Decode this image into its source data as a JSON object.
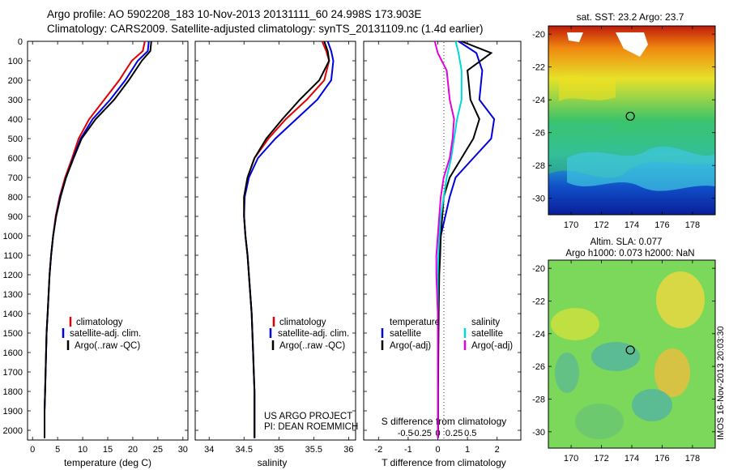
{
  "header": {
    "line1": "Argo profile: AO 5902208_183 10-Nov-2013 20131111_60 24.998S 173.903E",
    "line2": "Climatology: CARS2009. Satellite-adjusted climatology: synTS_20131109.nc (1.4d earlier)"
  },
  "colors": {
    "climatology": "#e00000",
    "satellite": "#0000e0",
    "argo": "#000000",
    "salinity_satellite": "#00d8d8",
    "salinity_argo": "#e000e0"
  },
  "depth_axis": {
    "ticks": [
      "0",
      "100",
      "200",
      "300",
      "400",
      "500",
      "600",
      "700",
      "800",
      "900",
      "1000",
      "1100",
      "1200",
      "1300",
      "1400",
      "1500",
      "1600",
      "1700",
      "1800",
      "1900",
      "2000"
    ]
  },
  "panels": {
    "temperature": {
      "xlabel": "temperature (deg C)",
      "xticks": [
        "0",
        "5",
        "10",
        "15",
        "20",
        "25",
        "30"
      ],
      "legend": [
        "climatology",
        "satellite-adj. clim.",
        "Argo(..raw -QC)"
      ]
    },
    "salinity": {
      "xlabel": "salinity",
      "xticks": [
        "34",
        "34.5",
        "35",
        "35.5",
        "36"
      ],
      "legend": [
        "climatology",
        "satellite-adj. clim.",
        "Argo(..raw -QC)"
      ],
      "credit": [
        "US ARGO PROJECT",
        "PI: DEAN ROEMMICH"
      ]
    },
    "difference": {
      "xlabel": "T difference from climatology",
      "toplabel": "S difference from climatology",
      "xticks": [
        "-2",
        "-1",
        "0",
        "1",
        "2"
      ],
      "sticks": [
        "-0.5",
        "-0.25",
        "0",
        "0.25",
        "0.5"
      ],
      "legend_temp_title": "temperature",
      "legend_temp": [
        "satellite",
        "Argo(-adj)"
      ],
      "legend_sal_title": "salinity",
      "legend_sal": [
        "satellite",
        "Argo(-adj)"
      ]
    }
  },
  "maps": {
    "sst": {
      "title": "sat. SST: 23.2 Argo: 23.7",
      "yticks": [
        "-20",
        "-22",
        "-24",
        "-26",
        "-28",
        "-30"
      ],
      "xticks": [
        "170",
        "172",
        "174",
        "176",
        "178"
      ]
    },
    "sla": {
      "title1": "Altim. SLA: 0.077",
      "title2": "Argo h1000: 0.073 h2000: NaN",
      "yticks": [
        "-20",
        "-22",
        "-24",
        "-26",
        "-28",
        "-30"
      ],
      "xticks": [
        "170",
        "172",
        "174",
        "176",
        "178"
      ],
      "stamp": "IMOS 16-Nov-2013 20:03:30"
    }
  },
  "chart_data": [
    {
      "type": "line",
      "xlabel": "temperature (deg C)",
      "ylabel": "",
      "xlim": [
        -1,
        31
      ],
      "ylim": [
        2050,
        0
      ],
      "series": [
        {
          "name": "climatology",
          "x": [
            22.4,
            22.0,
            19.8,
            17.3,
            14.3,
            11.3,
            9.2,
            7.9,
            6.5,
            5.4,
            4.6,
            4.1,
            3.7,
            3.4,
            3.2,
            3.0,
            2.8,
            2.7,
            2.6,
            2.5,
            2.4,
            2.4
          ],
          "y": [
            0,
            50,
            100,
            200,
            300,
            400,
            500,
            600,
            700,
            800,
            900,
            1000,
            1100,
            1200,
            1300,
            1400,
            1500,
            1600,
            1700,
            1800,
            1900,
            2040
          ]
        },
        {
          "name": "satellite-adj. clim.",
          "x": [
            23.2,
            23.0,
            21.0,
            18.5,
            15.5,
            12.0,
            9.6,
            8.1,
            6.7,
            5.5,
            4.7,
            4.1,
            3.7,
            3.4,
            3.2,
            3.0,
            2.8,
            2.7,
            2.6,
            2.5,
            2.4,
            2.4
          ],
          "y": [
            0,
            50,
            100,
            200,
            300,
            400,
            500,
            600,
            700,
            800,
            900,
            1000,
            1100,
            1200,
            1300,
            1400,
            1500,
            1600,
            1700,
            1800,
            1900,
            2040
          ]
        },
        {
          "name": "Argo(..raw -QC)",
          "x": [
            23.7,
            23.5,
            21.8,
            19.2,
            16.3,
            12.6,
            9.8,
            8.2,
            6.7,
            5.6,
            4.7,
            4.1,
            3.7,
            3.4,
            3.2,
            3.0,
            2.8,
            2.7,
            2.6,
            2.5,
            2.4,
            2.4
          ],
          "y": [
            0,
            50,
            100,
            200,
            300,
            400,
            500,
            600,
            700,
            800,
            900,
            1000,
            1100,
            1200,
            1300,
            1400,
            1500,
            1600,
            1700,
            1800,
            1900,
            2040
          ]
        }
      ]
    },
    {
      "type": "line",
      "xlabel": "salinity",
      "ylabel": "",
      "xlim": [
        33.8,
        36.1
      ],
      "ylim": [
        2050,
        0
      ],
      "series": [
        {
          "name": "climatology",
          "x": [
            35.62,
            35.68,
            35.72,
            35.65,
            35.4,
            35.1,
            34.85,
            34.65,
            34.55,
            34.5,
            34.5,
            34.52,
            34.55,
            34.57,
            34.59,
            34.61,
            34.62,
            34.63,
            34.64,
            34.65,
            34.65,
            34.65
          ],
          "y": [
            0,
            50,
            100,
            200,
            300,
            400,
            500,
            600,
            700,
            800,
            900,
            1000,
            1100,
            1200,
            1300,
            1400,
            1500,
            1600,
            1700,
            1800,
            1900,
            2040
          ]
        },
        {
          "name": "satellite-adj. clim.",
          "x": [
            35.7,
            35.75,
            35.78,
            35.75,
            35.55,
            35.25,
            34.95,
            34.7,
            34.57,
            34.51,
            34.5,
            34.52,
            34.55,
            34.57,
            34.59,
            34.61,
            34.62,
            34.63,
            34.64,
            34.65,
            34.65,
            34.65
          ],
          "y": [
            0,
            50,
            100,
            200,
            300,
            400,
            500,
            600,
            700,
            800,
            900,
            1000,
            1100,
            1200,
            1300,
            1400,
            1500,
            1600,
            1700,
            1800,
            1900,
            2040
          ]
        },
        {
          "name": "Argo(..raw -QC)",
          "x": [
            35.65,
            35.7,
            35.72,
            35.58,
            35.3,
            35.05,
            34.82,
            34.65,
            34.55,
            34.5,
            34.5,
            34.52,
            34.55,
            34.57,
            34.59,
            34.61,
            34.62,
            34.63,
            34.64,
            34.65,
            34.65,
            34.65
          ],
          "y": [
            0,
            50,
            100,
            200,
            300,
            400,
            500,
            600,
            700,
            800,
            900,
            1000,
            1100,
            1200,
            1300,
            1400,
            1500,
            1600,
            1700,
            1800,
            1900,
            2040
          ]
        }
      ]
    },
    {
      "type": "line",
      "xlabel": "T difference from climatology",
      "title": "S difference from climatology",
      "xlim": [
        -2.5,
        2.8
      ],
      "ylim": [
        2050,
        0
      ],
      "series": [
        {
          "name": "satellite",
          "x": [
            0.7,
            1.3,
            1.5,
            1.4,
            1.9,
            1.8,
            1.2,
            0.6,
            0.4,
            0.25,
            0.1,
            0.05,
            0.02,
            0.01,
            0.0,
            0.0,
            0.0
          ],
          "y": [
            0,
            60,
            150,
            300,
            400,
            500,
            600,
            700,
            800,
            900,
            1000,
            1100,
            1200,
            1400,
            1600,
            1800,
            2040
          ]
        },
        {
          "name": "Argo(-adj)",
          "x": [
            0.8,
            1.8,
            1.0,
            1.1,
            1.4,
            1.2,
            0.8,
            0.4,
            0.2,
            0.15,
            0.1,
            0.08,
            0.05,
            0.03,
            0.02,
            0.01,
            0.01
          ],
          "y": [
            0,
            60,
            150,
            300,
            400,
            500,
            600,
            700,
            800,
            900,
            1000,
            1100,
            1200,
            1400,
            1600,
            1800,
            2040
          ]
        },
        {
          "name": "salinity satellite",
          "x": [
            0.6,
            0.7,
            0.8,
            0.8,
            0.65,
            0.55,
            0.45,
            0.3,
            0.2,
            0.1,
            0.05,
            0.02,
            0.0,
            0.0,
            0.0,
            0.0,
            0.0
          ],
          "y": [
            0,
            60,
            150,
            300,
            400,
            500,
            600,
            700,
            800,
            900,
            1000,
            1100,
            1200,
            1400,
            1600,
            1800,
            2040
          ]
        },
        {
          "name": "salinity Argo(-adj)",
          "x": [
            -0.1,
            0.0,
            0.3,
            0.4,
            0.55,
            0.5,
            0.4,
            0.2,
            0.1,
            0.05,
            0.0,
            -0.05,
            -0.05,
            0.0,
            0.0,
            0.0,
            0.0
          ],
          "y": [
            0,
            60,
            150,
            300,
            400,
            500,
            600,
            700,
            800,
            900,
            1000,
            1100,
            1200,
            1400,
            1600,
            1800,
            2040
          ]
        }
      ]
    },
    {
      "type": "heatmap",
      "title": "sat. SST: 23.2 Argo: 23.7",
      "xlim": [
        168.5,
        179.5
      ],
      "ylim": [
        -31,
        -19.5
      ],
      "marker": {
        "lon": 173.9,
        "lat": -25.0
      }
    },
    {
      "type": "heatmap",
      "title": "Altim. SLA: 0.077",
      "xlim": [
        168.5,
        179.5
      ],
      "ylim": [
        -31,
        -19.5
      ],
      "marker": {
        "lon": 173.9,
        "lat": -25.0
      }
    }
  ]
}
